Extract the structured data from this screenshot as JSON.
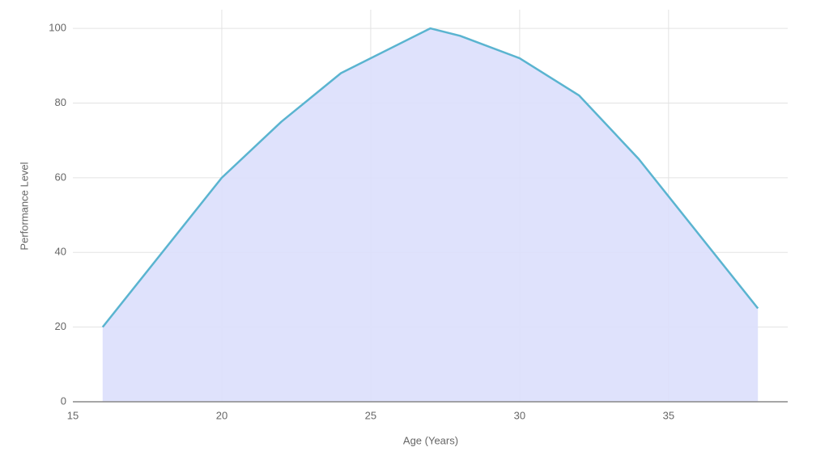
{
  "chart_data": {
    "type": "area",
    "x_label": "Age (Years)",
    "y_label": "Performance Level",
    "x": [
      16,
      20,
      22,
      24,
      27,
      28,
      30,
      32,
      34,
      38
    ],
    "series": [
      {
        "color": "#5ab4d0",
        "fill": "#dcdffc",
        "values": [
          20,
          60,
          75,
          88,
          100,
          98,
          92,
          82,
          65,
          25
        ]
      }
    ],
    "xlim": [
      15,
      39
    ],
    "xticks": [
      15,
      20,
      25,
      30,
      35
    ],
    "ylim": [
      0,
      105
    ],
    "yticks": [
      0,
      20,
      40,
      60,
      80,
      100
    ],
    "grid": true
  }
}
